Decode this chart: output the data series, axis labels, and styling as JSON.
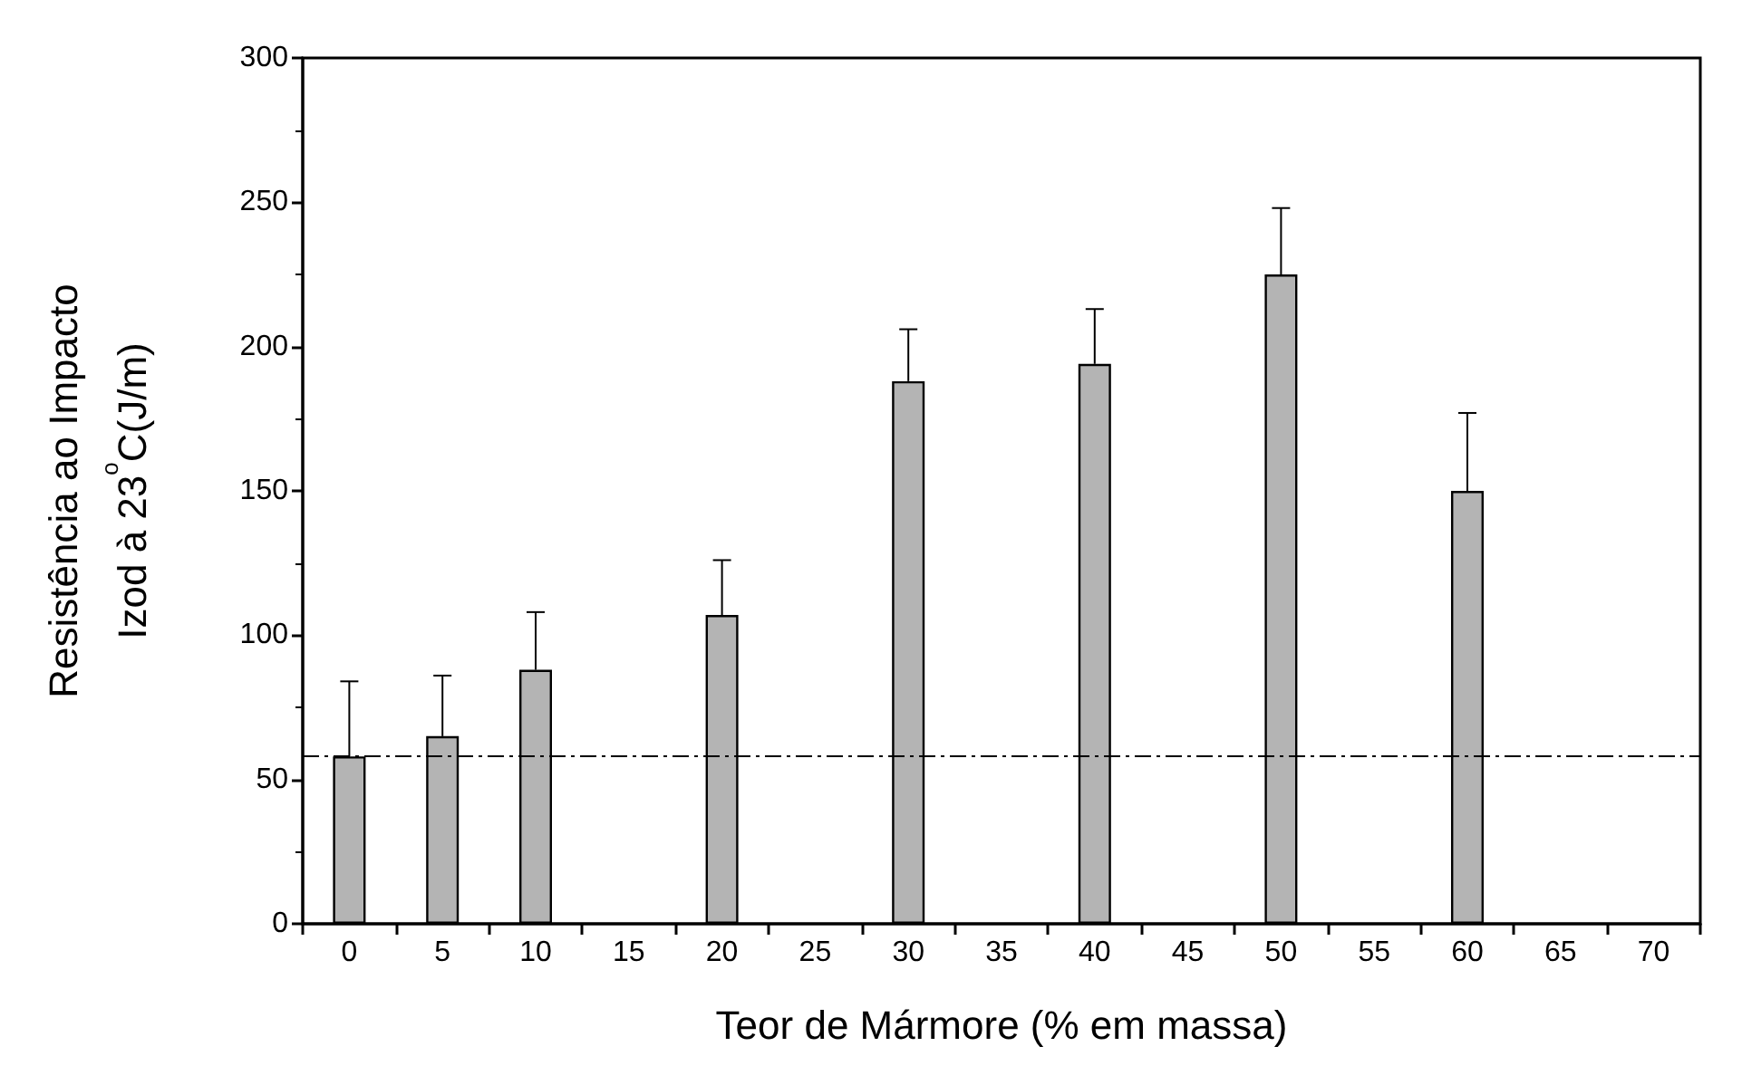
{
  "chart_data": {
    "type": "bar",
    "xlabel": "Teor de Mármore (% em massa)",
    "ylabel": "Resistência ao Impacto\nIzod à 23$^{o}$C(J/m)",
    "categories": [
      "0",
      "5",
      "10",
      "15",
      "20",
      "25",
      "30",
      "35",
      "40",
      "45",
      "50",
      "55",
      "60",
      "65",
      "70"
    ],
    "series": [
      {
        "color": "#b4b4b4",
        "values": [
          58,
          65,
          88,
          null,
          107,
          null,
          188,
          null,
          194,
          null,
          225,
          null,
          150,
          null,
          null
        ],
        "errors": [
          [
            58,
            84
          ],
          [
            65,
            86
          ],
          [
            88,
            108
          ],
          null,
          [
            107,
            126
          ],
          null,
          [
            188,
            206
          ],
          null,
          [
            194,
            213
          ],
          null,
          [
            225,
            248
          ],
          null,
          [
            150,
            177
          ],
          null,
          null
        ]
      }
    ],
    "ylim": [
      0,
      300
    ],
    "yticks": [
      0,
      50,
      100,
      150,
      200,
      250,
      300
    ],
    "ref_lines": [
      {
        "axis": "y",
        "value": 58,
        "color": "#000000",
        "line_style": "dashed"
      }
    ],
    "grid": false
  }
}
